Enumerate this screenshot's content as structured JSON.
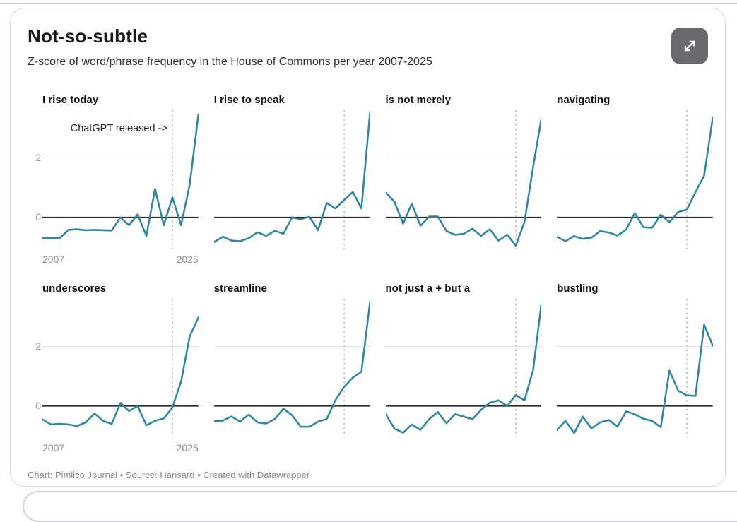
{
  "card": {
    "title": "Not-so-subtle",
    "subtitle": "Z-score of word/phrase frequency in the House of Commons per year 2007-2025",
    "footer": "Chart: Pimlico Journal • Source: Hansard • Created with Datawrapper",
    "expand_button": "expand-fullscreen"
  },
  "chart_data": {
    "type": "line",
    "layout": "small multiples, 2 rows x 4 columns, shared axes",
    "x": [
      2007,
      2008,
      2009,
      2010,
      2011,
      2012,
      2013,
      2014,
      2015,
      2016,
      2017,
      2018,
      2019,
      2020,
      2021,
      2022,
      2023,
      2024,
      2025
    ],
    "x_tick_labels": [
      "2007",
      "2025"
    ],
    "y_tick_labels": [
      "2",
      "0"
    ],
    "y_ticks": [
      2,
      0
    ],
    "ylim": [
      -1.05,
      3.6
    ],
    "xlabel": "",
    "ylabel": "Z-score",
    "grid": "horizontal line at 2 (light), zero line (dark), dashed vertical marker at 2022 in every panel",
    "annotation": {
      "text": "ChatGPT released ->",
      "x": 2022,
      "panel": "I rise today"
    },
    "colors": {
      "line": "#2e86a5",
      "zero_line": "#2b2b2b",
      "grid_line": "#e2e2e2",
      "dashed_line": "#b0b0b0",
      "tick_label": "#8d8d8d"
    },
    "series": [
      {
        "name": "I rise today",
        "values": [
          -0.7,
          -0.7,
          -0.7,
          -0.42,
          -0.4,
          -0.43,
          -0.42,
          -0.43,
          -0.44,
          0.0,
          -0.26,
          0.1,
          -0.62,
          0.95,
          -0.26,
          0.67,
          -0.26,
          1.1,
          3.45
        ]
      },
      {
        "name": "I rise to speak",
        "values": [
          -0.83,
          -0.65,
          -0.78,
          -0.8,
          -0.7,
          -0.5,
          -0.62,
          -0.45,
          -0.55,
          0.0,
          -0.06,
          0.02,
          -0.43,
          0.48,
          0.3,
          0.58,
          0.85,
          0.3,
          3.55
        ]
      },
      {
        "name": "is not merely",
        "values": [
          0.83,
          0.52,
          -0.21,
          0.46,
          -0.28,
          0.03,
          0.03,
          -0.46,
          -0.59,
          -0.55,
          -0.38,
          -0.62,
          -0.4,
          -0.78,
          -0.58,
          -0.95,
          -0.15,
          1.7,
          3.4
        ]
      },
      {
        "name": "navigating",
        "values": [
          -0.65,
          -0.8,
          -0.63,
          -0.72,
          -0.68,
          -0.46,
          -0.51,
          -0.61,
          -0.41,
          0.14,
          -0.33,
          -0.35,
          0.09,
          -0.16,
          0.18,
          0.26,
          0.85,
          1.4,
          3.35
        ]
      },
      {
        "name": "underscores",
        "values": [
          -0.45,
          -0.62,
          -0.6,
          -0.62,
          -0.67,
          -0.55,
          -0.25,
          -0.5,
          -0.6,
          0.1,
          -0.17,
          0.0,
          -0.65,
          -0.5,
          -0.42,
          -0.05,
          0.82,
          2.34,
          2.97
        ]
      },
      {
        "name": "streamline",
        "values": [
          -0.51,
          -0.49,
          -0.35,
          -0.52,
          -0.29,
          -0.55,
          -0.59,
          -0.44,
          -0.09,
          -0.31,
          -0.7,
          -0.7,
          -0.52,
          -0.44,
          0.2,
          0.64,
          0.95,
          1.15,
          3.5
        ]
      },
      {
        "name": "not just a + but a",
        "values": [
          -0.28,
          -0.76,
          -0.9,
          -0.62,
          -0.8,
          -0.44,
          -0.2,
          -0.58,
          -0.27,
          -0.36,
          -0.44,
          -0.13,
          0.11,
          0.19,
          0.0,
          0.37,
          0.19,
          1.21,
          3.55
        ]
      },
      {
        "name": "bustling",
        "values": [
          -0.81,
          -0.5,
          -0.91,
          -0.36,
          -0.75,
          -0.55,
          -0.47,
          -0.69,
          -0.18,
          -0.28,
          -0.43,
          -0.5,
          -0.71,
          1.19,
          0.51,
          0.36,
          0.34,
          2.73,
          2.02
        ]
      }
    ]
  }
}
